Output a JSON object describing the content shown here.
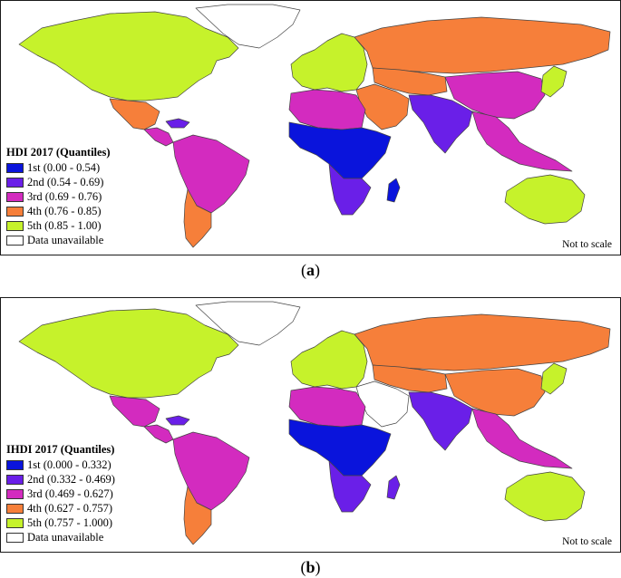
{
  "colors": {
    "q1": "#0a14dc",
    "q2": "#6a1fe8",
    "q3": "#d32bbf",
    "q4": "#f67f3a",
    "q5": "#c6f22b",
    "na": "#ffffff",
    "border": "#444444"
  },
  "panel_a": {
    "legend_title": "HDI 2017 (Quantiles)",
    "legend": [
      {
        "label": "1st (0.00 - 0.54)",
        "color": "#0a14dc"
      },
      {
        "label": "2nd (0.54 - 0.69)",
        "color": "#6a1fe8"
      },
      {
        "label": "3rd (0.69 - 0.76)",
        "color": "#d32bbf"
      },
      {
        "label": "4th (0.76 - 0.85)",
        "color": "#f67f3a"
      },
      {
        "label": "5th (0.85 - 1.00)",
        "color": "#c6f22b"
      },
      {
        "label": "Data unavailable",
        "color": "#ffffff"
      }
    ],
    "scale_note": "Not to scale",
    "caption_letter": "a",
    "regions": {
      "north_america": "5th",
      "greenland": "unavailable",
      "mexico_central": "4th",
      "central_america": "3rd",
      "caribbean": "2nd",
      "south_america_north": "3rd",
      "south_america_south": "4th",
      "europe": "5th",
      "russia": "4th",
      "china": "3rd",
      "japan_korea": "5th",
      "central_asia": "4th",
      "middle_east": "4th",
      "south_asia": "2nd",
      "southeast_asia": "3rd",
      "north_africa": "3rd",
      "sub_saharan_africa": "1st",
      "southern_africa": "2nd",
      "madagascar": "1st",
      "australia": "5th"
    }
  },
  "panel_b": {
    "legend_title": "IHDI 2017 (Quantiles)",
    "legend": [
      {
        "label": "1st (0.000 - 0.332)",
        "color": "#0a14dc"
      },
      {
        "label": "2nd (0.332 - 0.469)",
        "color": "#6a1fe8"
      },
      {
        "label": "3rd (0.469 - 0.627)",
        "color": "#d32bbf"
      },
      {
        "label": "4th (0.627 - 0.757)",
        "color": "#f67f3a"
      },
      {
        "label": "5th (0.757 - 1.000)",
        "color": "#c6f22b"
      },
      {
        "label": "Data unavailable",
        "color": "#ffffff"
      }
    ],
    "scale_note": "Not to scale",
    "caption_letter": "b",
    "regions": {
      "north_america": "5th",
      "greenland": "unavailable",
      "mexico_central": "3rd",
      "central_america": "3rd",
      "caribbean": "2nd",
      "south_america_north": "3rd",
      "south_america_south": "4th",
      "europe": "5th",
      "russia": "4th",
      "china": "4th",
      "japan_korea": "5th",
      "central_asia": "4th",
      "middle_east": "unavailable",
      "south_asia": "2nd",
      "southeast_asia": "3rd",
      "north_africa": "3rd",
      "sub_saharan_africa": "1st",
      "southern_africa": "2nd",
      "madagascar": "2nd",
      "australia": "5th"
    }
  }
}
